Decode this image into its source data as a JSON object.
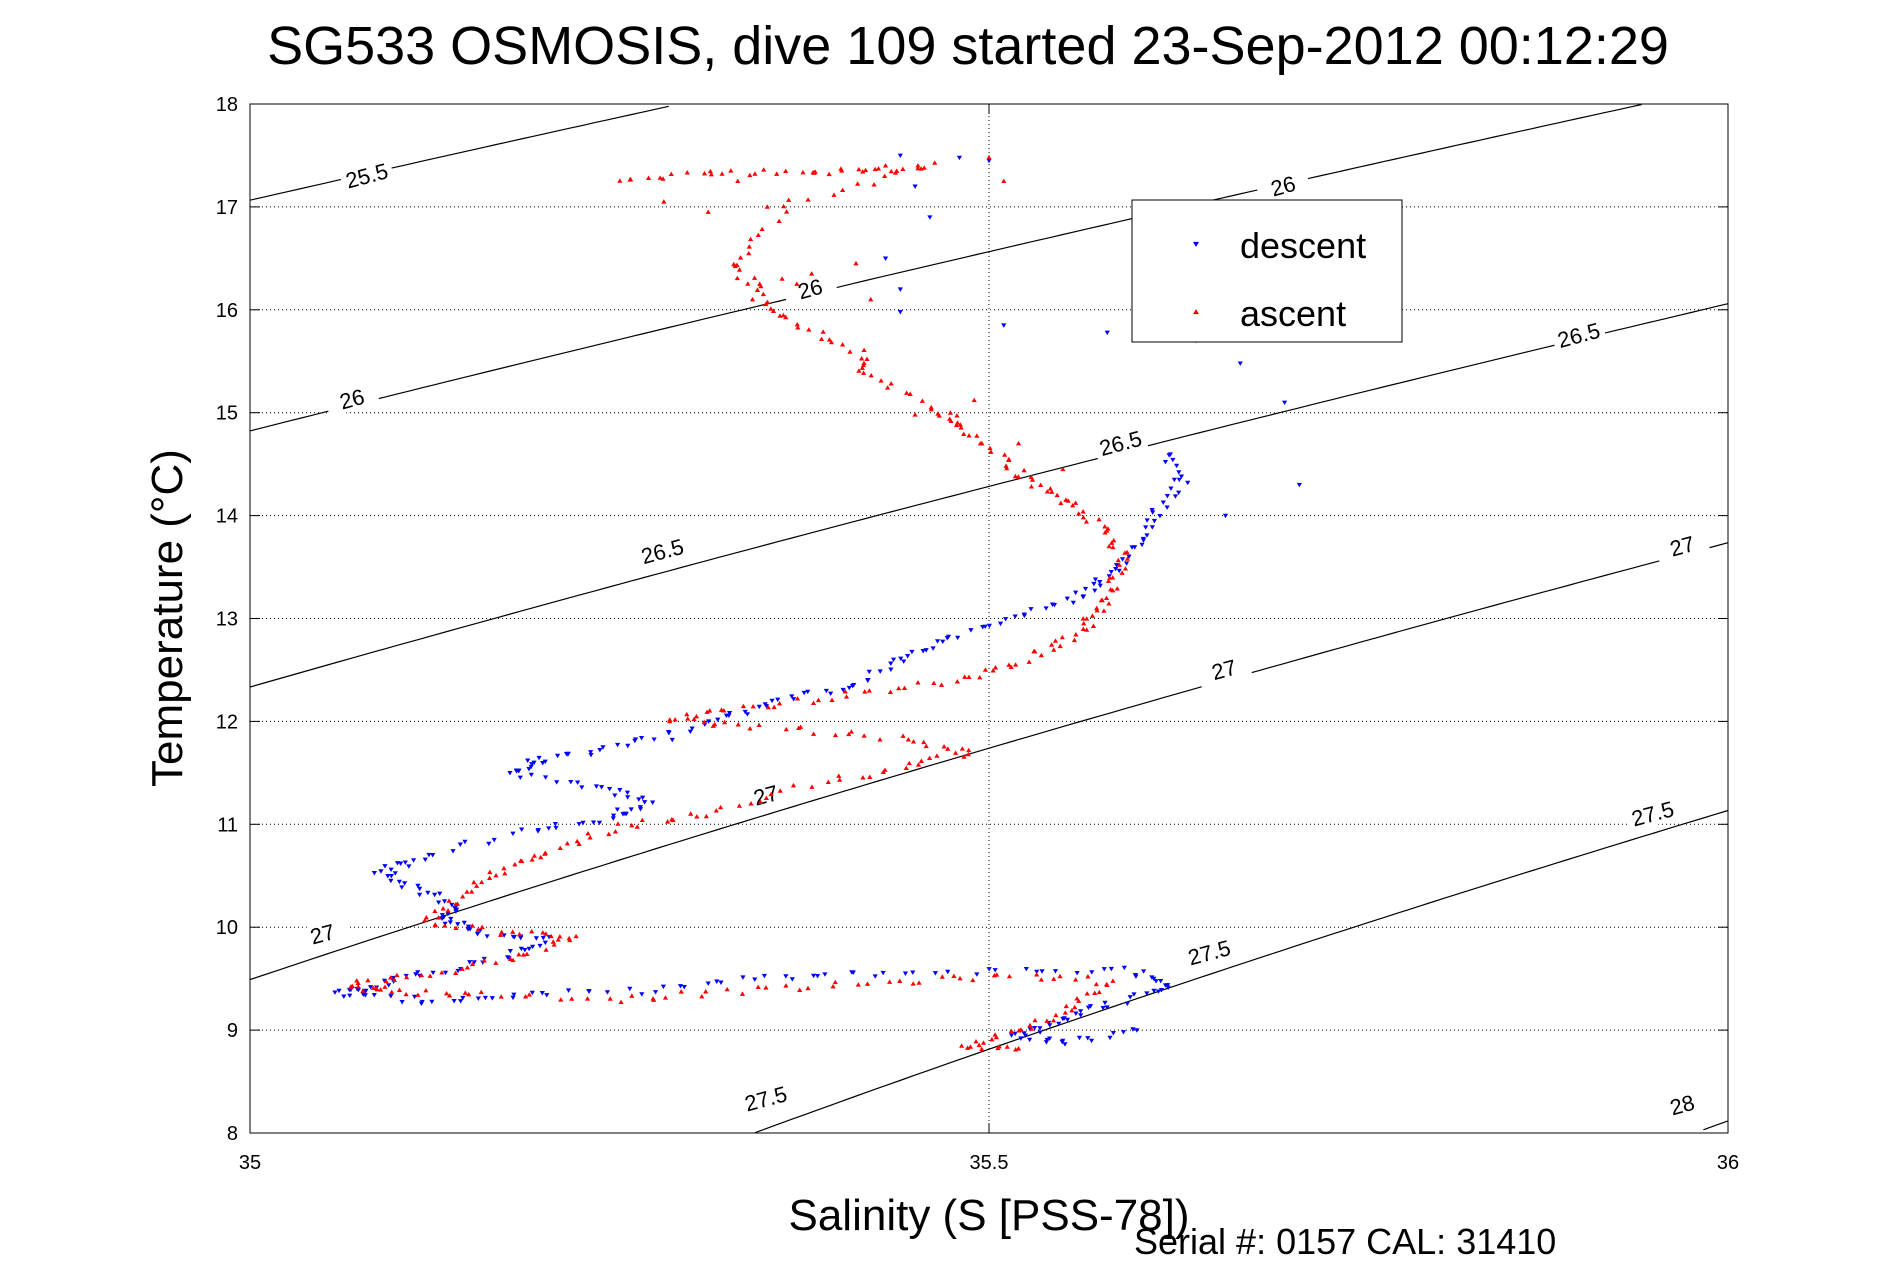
{
  "chart_data": {
    "type": "scatter",
    "title": "SG533 OSMOSIS, dive 109 started 23-Sep-2012 00:12:29",
    "xlabel": "Salinity (S [PSS-78])",
    "ylabel": "Temperature (°C)",
    "footer": "Serial #: 0157  CAL: 31410",
    "xlim": [
      35,
      36
    ],
    "ylim": [
      8,
      18
    ],
    "xticks": [
      35,
      35.5,
      36
    ],
    "xtick_labels": [
      "35",
      "35.5",
      "36"
    ],
    "yticks": [
      8,
      9,
      10,
      11,
      12,
      13,
      14,
      15,
      16,
      17,
      18
    ],
    "ytick_labels": [
      "8",
      "9",
      "10",
      "11",
      "12",
      "13",
      "14",
      "15",
      "16",
      "17",
      "18"
    ],
    "grid": true,
    "legend_position": "top-right",
    "density_contours": {
      "levels": [
        25.5,
        26,
        26.5,
        27,
        27.5,
        28
      ],
      "labels": [
        {
          "text": "25.5",
          "x": 35.08,
          "y": 17.25
        },
        {
          "text": "26",
          "x": 35.7,
          "y": 17.15
        },
        {
          "text": "26",
          "x": 35.38,
          "y": 16.15
        },
        {
          "text": "26",
          "x": 35.07,
          "y": 15.08
        },
        {
          "text": "26.5",
          "x": 35.9,
          "y": 15.7
        },
        {
          "text": "26.5",
          "x": 35.59,
          "y": 14.65
        },
        {
          "text": "26.5",
          "x": 35.28,
          "y": 13.6
        },
        {
          "text": "27",
          "x": 35.97,
          "y": 13.65
        },
        {
          "text": "27",
          "x": 35.66,
          "y": 12.45
        },
        {
          "text": "27",
          "x": 35.35,
          "y": 11.23
        },
        {
          "text": "27",
          "x": 35.05,
          "y": 9.88
        },
        {
          "text": "27.5",
          "x": 35.95,
          "y": 11.05
        },
        {
          "text": "27.5",
          "x": 35.65,
          "y": 9.7
        },
        {
          "text": "27.5",
          "x": 35.35,
          "y": 8.28
        },
        {
          "text": "28",
          "x": 35.97,
          "y": 8.22
        }
      ]
    },
    "series": [
      {
        "name": "descent",
        "color": "#0000ff",
        "marker": "triangle-down",
        "path": [
          [
            35.62,
            14.6
          ],
          [
            35.63,
            14.3
          ],
          [
            35.61,
            14.0
          ],
          [
            35.6,
            13.7
          ],
          [
            35.58,
            13.4
          ],
          [
            35.56,
            13.2
          ],
          [
            35.52,
            13.0
          ],
          [
            35.47,
            12.8
          ],
          [
            35.44,
            12.6
          ],
          [
            35.41,
            12.35
          ],
          [
            35.36,
            12.2
          ],
          [
            35.32,
            12.05
          ],
          [
            35.28,
            11.85
          ],
          [
            35.23,
            11.7
          ],
          [
            35.19,
            11.6
          ],
          [
            35.18,
            11.5
          ],
          [
            35.24,
            11.35
          ],
          [
            35.27,
            11.2
          ],
          [
            35.24,
            11.05
          ],
          [
            35.19,
            10.95
          ],
          [
            35.12,
            10.7
          ],
          [
            35.09,
            10.55
          ],
          [
            35.11,
            10.4
          ],
          [
            35.14,
            10.2
          ],
          [
            35.13,
            10.05
          ],
          [
            35.16,
            9.95
          ],
          [
            35.2,
            9.88
          ],
          [
            35.17,
            9.72
          ],
          [
            35.12,
            9.55
          ],
          [
            35.08,
            9.42
          ],
          [
            35.06,
            9.35
          ],
          [
            35.12,
            9.28
          ],
          [
            35.18,
            9.34
          ],
          [
            35.26,
            9.38
          ],
          [
            35.34,
            9.5
          ],
          [
            35.42,
            9.55
          ],
          [
            35.52,
            9.58
          ],
          [
            35.6,
            9.58
          ],
          [
            35.62,
            9.42
          ],
          [
            35.58,
            9.25
          ],
          [
            35.55,
            9.1
          ],
          [
            35.52,
            8.95
          ],
          [
            35.55,
            8.88
          ],
          [
            35.6,
            9.0
          ]
        ],
        "extra": [
          [
            35.44,
            17.5
          ],
          [
            35.45,
            17.2
          ],
          [
            35.46,
            16.9
          ],
          [
            35.43,
            16.5
          ],
          [
            35.44,
            16.2
          ],
          [
            35.44,
            15.98
          ],
          [
            35.51,
            15.85
          ],
          [
            35.58,
            15.78
          ],
          [
            35.64,
            15.7
          ],
          [
            35.67,
            15.48
          ],
          [
            35.7,
            15.1
          ],
          [
            35.48,
            17.48
          ],
          [
            35.5,
            17.45
          ],
          [
            35.71,
            14.3
          ],
          [
            35.66,
            14.0
          ]
        ]
      },
      {
        "name": "ascent",
        "color": "#ff0000",
        "marker": "triangle-up",
        "path": [
          [
            35.25,
            17.28
          ],
          [
            35.31,
            17.33
          ],
          [
            35.37,
            17.34
          ],
          [
            35.42,
            17.35
          ],
          [
            35.46,
            17.4
          ],
          [
            35.37,
            17.05
          ],
          [
            35.33,
            16.5
          ],
          [
            35.34,
            16.2
          ],
          [
            35.36,
            15.9
          ],
          [
            35.41,
            15.6
          ],
          [
            35.42,
            15.35
          ],
          [
            35.47,
            15.0
          ],
          [
            35.48,
            14.85
          ],
          [
            35.51,
            14.55
          ],
          [
            35.53,
            14.3
          ],
          [
            35.56,
            14.1
          ],
          [
            35.58,
            13.85
          ],
          [
            35.59,
            13.55
          ],
          [
            35.58,
            13.25
          ],
          [
            35.57,
            13.0
          ],
          [
            35.55,
            12.78
          ],
          [
            35.52,
            12.55
          ],
          [
            35.47,
            12.38
          ],
          [
            35.4,
            12.25
          ],
          [
            35.33,
            12.12
          ],
          [
            35.28,
            12.02
          ],
          [
            35.35,
            11.95
          ],
          [
            35.43,
            11.85
          ],
          [
            35.49,
            11.72
          ],
          [
            35.44,
            11.55
          ],
          [
            35.37,
            11.35
          ],
          [
            35.31,
            11.1
          ],
          [
            35.25,
            10.98
          ],
          [
            35.2,
            10.75
          ],
          [
            35.17,
            10.55
          ],
          [
            35.14,
            10.3
          ],
          [
            35.12,
            10.05
          ],
          [
            35.17,
            9.95
          ],
          [
            35.22,
            9.9
          ],
          [
            35.18,
            9.7
          ],
          [
            35.12,
            9.55
          ],
          [
            35.07,
            9.45
          ],
          [
            35.09,
            9.38
          ],
          [
            35.15,
            9.35
          ],
          [
            35.25,
            9.3
          ],
          [
            35.33,
            9.38
          ],
          [
            35.42,
            9.45
          ],
          [
            35.5,
            9.52
          ],
          [
            35.58,
            9.5
          ],
          [
            35.56,
            9.25
          ],
          [
            35.53,
            9.02
          ],
          [
            35.48,
            8.85
          ],
          [
            35.52,
            8.82
          ]
        ],
        "extra": [
          [
            35.31,
            16.95
          ],
          [
            35.33,
            17.25
          ],
          [
            35.35,
            17.0
          ],
          [
            35.38,
            16.35
          ],
          [
            35.41,
            16.45
          ],
          [
            35.42,
            16.1
          ],
          [
            35.37,
            16.25
          ],
          [
            35.43,
            17.4
          ],
          [
            35.5,
            17.48
          ],
          [
            35.51,
            17.25
          ],
          [
            35.49,
            15.12
          ],
          [
            35.45,
            14.98
          ],
          [
            35.52,
            14.7
          ],
          [
            35.55,
            14.45
          ],
          [
            35.28,
            17.05
          ],
          [
            35.34,
            16.1
          ],
          [
            35.36,
            16.3
          ]
        ]
      }
    ]
  }
}
